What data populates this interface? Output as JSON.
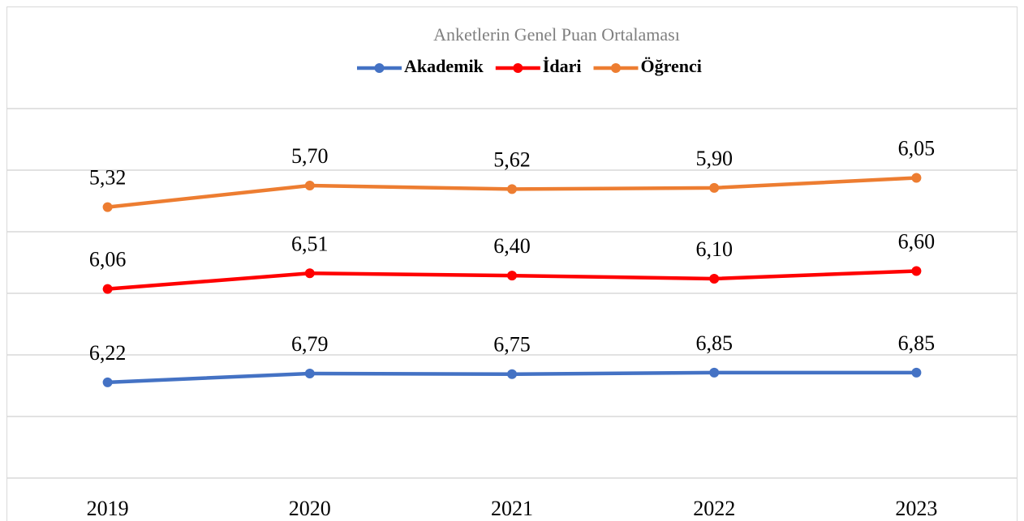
{
  "chart_data": {
    "type": "line",
    "stacked": true,
    "title": "Anketlerin Genel Puan Ortalaması",
    "categories": [
      "2019",
      "2020",
      "2021",
      "2022",
      "2023"
    ],
    "series": [
      {
        "name": "Akademik",
        "color": "#4472c4",
        "values": [
          6.22,
          6.79,
          6.75,
          6.85,
          6.85
        ],
        "value_labels": [
          "6,22",
          "6,79",
          "6,75",
          "6,85",
          "6,85"
        ]
      },
      {
        "name": "İdari",
        "color": "#ff0000",
        "values": [
          6.06,
          6.51,
          6.4,
          6.1,
          6.6
        ],
        "value_labels": [
          "6,06",
          "6,51",
          "6,40",
          "6,10",
          "6,60"
        ]
      },
      {
        "name": "Öğrenci",
        "color": "#ed7d31",
        "values": [
          5.32,
          5.7,
          5.62,
          5.9,
          6.05
        ],
        "value_labels": [
          "5,32",
          "5,70",
          "5,62",
          "5,90",
          "6,05"
        ]
      }
    ],
    "ylim": [
      0,
      24
    ],
    "yticks": [
      0,
      4,
      8,
      12,
      16,
      20,
      24
    ],
    "grid": true,
    "legend": "top"
  }
}
